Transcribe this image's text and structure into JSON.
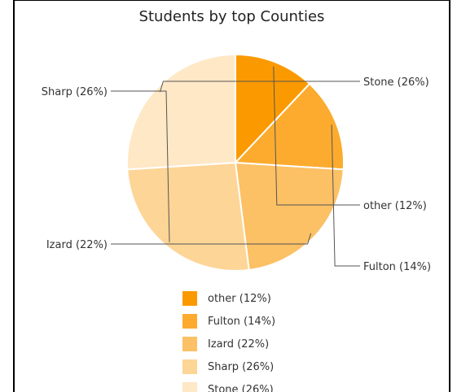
{
  "chart_data": {
    "type": "pie",
    "title": "Students by top Counties",
    "slices": [
      {
        "label": "other (12%)",
        "value": 12,
        "color": "#fb9a00"
      },
      {
        "label": "Fulton (14%)",
        "value": 14,
        "color": "#fcab2e"
      },
      {
        "label": "Izard (22%)",
        "value": 22,
        "color": "#fcc065"
      },
      {
        "label": "Sharp (26%)",
        "value": 26,
        "color": "#fdd596"
      },
      {
        "label": "Stone (26%)",
        "value": 26,
        "color": "#fee8c6"
      }
    ],
    "start_angle_deg": 90,
    "direction": "clockwise",
    "legend_position": "bottom"
  }
}
